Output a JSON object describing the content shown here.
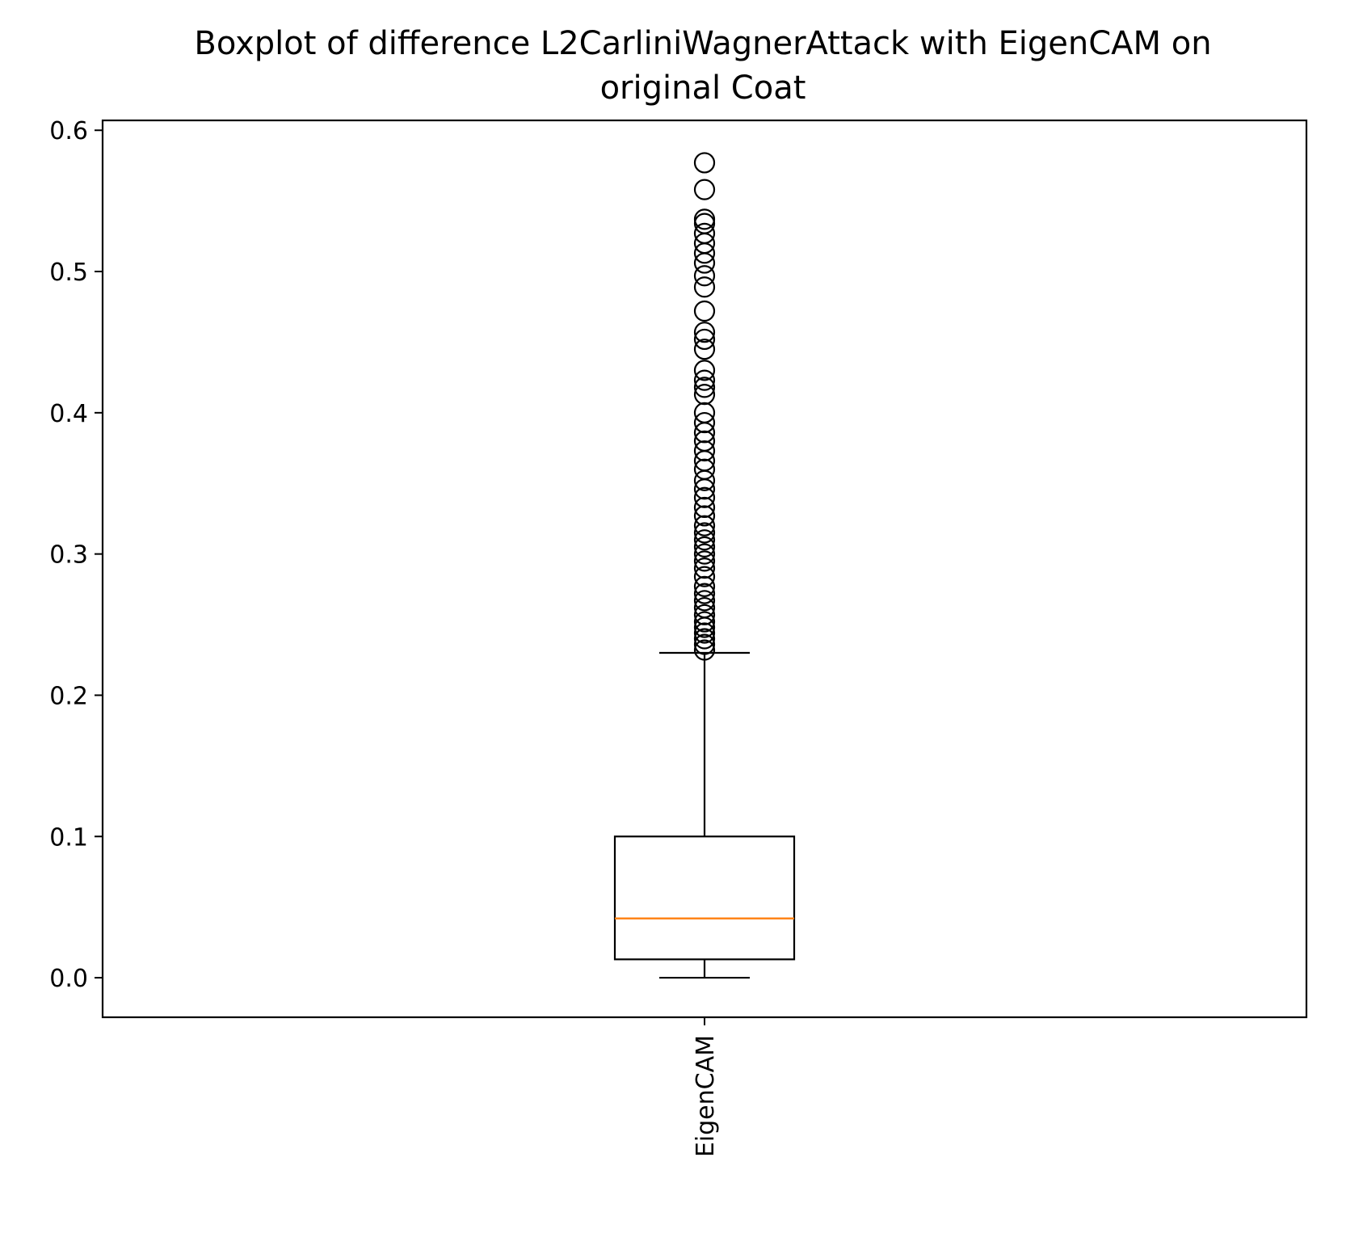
{
  "chart_data": {
    "type": "boxplot",
    "title": "Boxplot of difference L2CarliniWagnerAttack with EigenCAM on original Coat",
    "title_lines": [
      "Boxplot of difference L2CarliniWagnerAttack with EigenCAM on",
      "original Coat"
    ],
    "xlabel": "",
    "ylabel": "",
    "categories": [
      "EigenCAM"
    ],
    "ylim": [
      -0.028,
      0.607
    ],
    "yticks": [
      0.0,
      0.1,
      0.2,
      0.3,
      0.4,
      0.5,
      0.6
    ],
    "ytick_labels": [
      "0.0",
      "0.1",
      "0.2",
      "0.3",
      "0.4",
      "0.5",
      "0.6"
    ],
    "grid": false,
    "boxes": [
      {
        "category": "EigenCAM",
        "whisker_low": 0.0,
        "q1": 0.013,
        "median": 0.042,
        "q3": 0.1,
        "whisker_high": 0.23,
        "outliers": [
          0.232,
          0.236,
          0.24,
          0.244,
          0.248,
          0.252,
          0.257,
          0.262,
          0.267,
          0.272,
          0.277,
          0.284,
          0.29,
          0.295,
          0.3,
          0.305,
          0.31,
          0.315,
          0.32,
          0.327,
          0.333,
          0.34,
          0.346,
          0.352,
          0.36,
          0.366,
          0.373,
          0.38,
          0.386,
          0.393,
          0.4,
          0.413,
          0.418,
          0.423,
          0.43,
          0.445,
          0.452,
          0.457,
          0.472,
          0.489,
          0.497,
          0.506,
          0.513,
          0.52,
          0.527,
          0.534,
          0.537,
          0.558,
          0.577
        ]
      }
    ],
    "colors": {
      "box": "#000000",
      "median": "#ff7f0e",
      "outlier": "#000000"
    }
  }
}
